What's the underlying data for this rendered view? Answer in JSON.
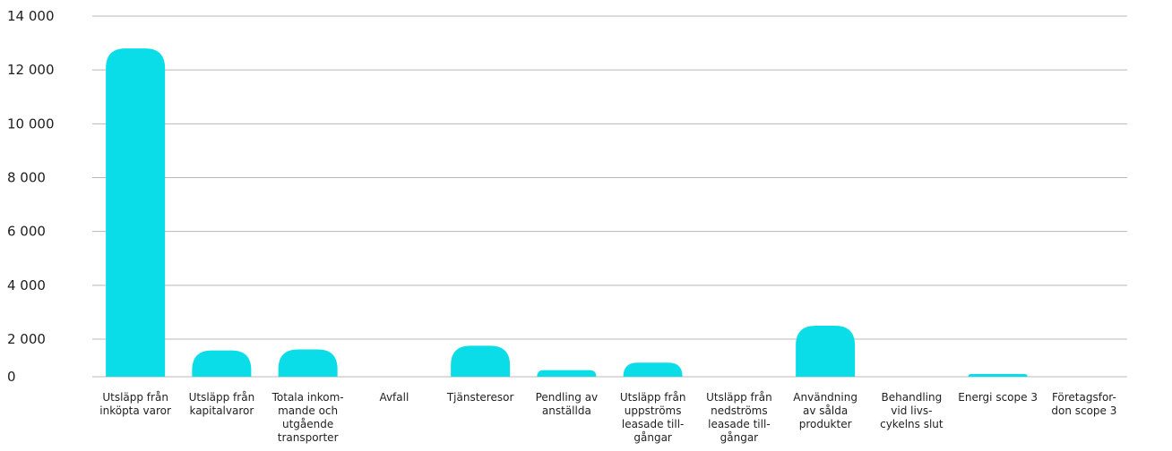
{
  "chart_data": {
    "type": "bar",
    "title": "",
    "xlabel": "",
    "ylabel": "",
    "ylim": [
      0,
      14000
    ],
    "yticks": [
      0,
      2000,
      4000,
      6000,
      8000,
      10000,
      12000,
      14000
    ],
    "ytick_labels": [
      "0",
      "2 000",
      "4 000",
      "6 000",
      "8 000",
      "10 000",
      "12 000",
      "14 000"
    ],
    "grid": true,
    "color": "#0bdde8",
    "categories": [
      "Utsläpp från\ninköpta varor",
      "Utsläpp från\nkapitalvaror",
      "Totala inkom-\nmande och\nutgående\ntransporter",
      "Avfall",
      "Tjänsteresor",
      "Pendling av\nanställda",
      "Utsläpp från\nuppströms\nleasade till-\ngångar",
      "Utsläpp från\nnedströms\nleasade till-\ngångar",
      "Användning\nav sålda\nprodukter",
      "Behandling\nvid livs-\ncykelns slut",
      "Energi scope 3",
      "Företagsfor-\ndon scope 3"
    ],
    "values": [
      12800,
      1400,
      1450,
      0,
      1650,
      350,
      750,
      0,
      2500,
      0,
      150,
      0
    ]
  }
}
